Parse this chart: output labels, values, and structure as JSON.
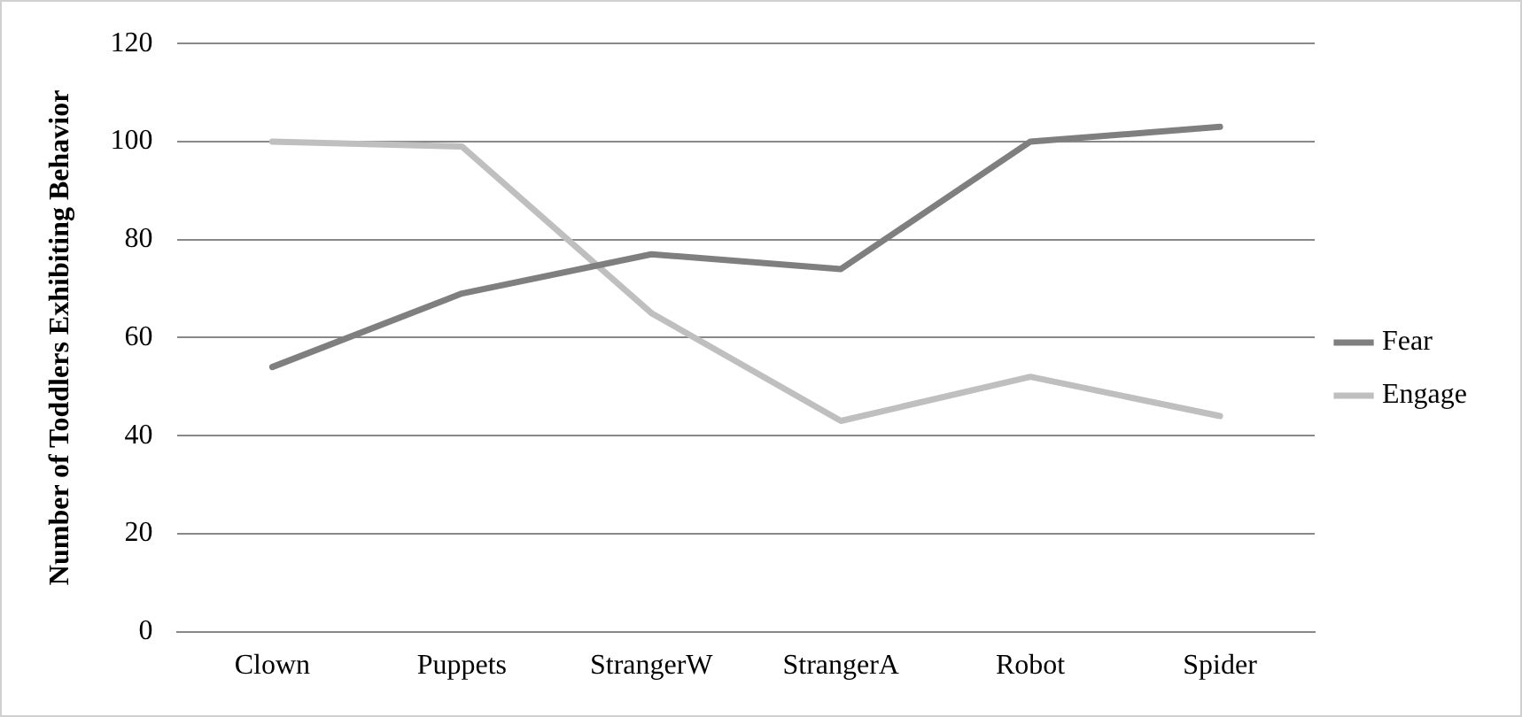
{
  "chart_data": {
    "type": "line",
    "ylabel": "Number of Toddlers Exhibiting Behavior",
    "categories": [
      "Clown",
      "Puppets",
      "StrangerW",
      "StrangerA",
      "Robot",
      "Spider"
    ],
    "series": [
      {
        "name": "Fear",
        "color": "#7f7f7f",
        "values": [
          54,
          69,
          77,
          74,
          100,
          103
        ]
      },
      {
        "name": "Engage",
        "color": "#bfbfbf",
        "values": [
          100,
          99,
          65,
          43,
          52,
          44
        ]
      }
    ],
    "ylim": [
      0,
      120
    ],
    "yticks": [
      0,
      20,
      40,
      60,
      80,
      100,
      120
    ],
    "grid": "y",
    "legend": "right",
    "marker": "none",
    "line_style": "solid"
  }
}
